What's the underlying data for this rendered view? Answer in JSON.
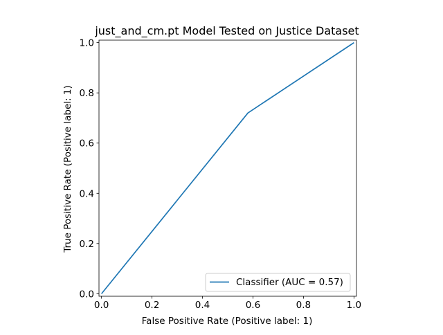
{
  "chart_data": {
    "type": "line",
    "title": "just_and_cm.pt Model Tested on Justice Dataset",
    "xlabel": "False Positive Rate (Positive label: 1)",
    "ylabel": "True Positive Rate (Positive label: 1)",
    "xlim": [
      -0.01,
      1.01
    ],
    "ylim": [
      -0.01,
      1.01
    ],
    "xticks": [
      "0.0",
      "0.2",
      "0.4",
      "0.6",
      "0.8",
      "1.0"
    ],
    "yticks": [
      "0.0",
      "0.2",
      "0.4",
      "0.6",
      "0.8",
      "1.0"
    ],
    "grid": false,
    "legend_position": "lower-right",
    "series": [
      {
        "name": "Classifier (AUC = 0.57)",
        "color": "#1f77b4",
        "x": [
          0.0,
          0.58,
          1.0
        ],
        "y": [
          0.0,
          0.72,
          1.0
        ]
      }
    ]
  }
}
